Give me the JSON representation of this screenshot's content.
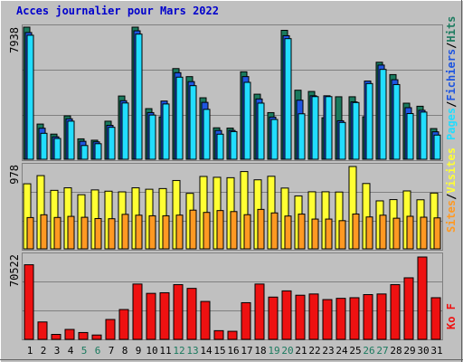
{
  "colors": {
    "background": "#c0c0c0",
    "title": "#0000cc",
    "hits": "#1a7a5e",
    "files": "#1e55e0",
    "pages": "#22ddff",
    "visits": "#ffff33",
    "sites": "#ff9922",
    "kb": "#ee1111",
    "weekend_label": "#1a7a5e",
    "weekday_label": "#000000"
  },
  "chart_data": [
    {
      "type": "bar",
      "title": "Acces journalier pour Mars 2022",
      "panel": "hits-files-pages",
      "ylabel_max": "7938",
      "ylim": [
        0,
        7938
      ],
      "legend": [
        {
          "label": "Pages",
          "color": "#22ddff"
        },
        {
          "label": "Fichiers",
          "color": "#1e55e0"
        },
        {
          "label": "Hits",
          "color": "#1a7a5e"
        }
      ],
      "categories": [
        "1",
        "2",
        "3",
        "4",
        "5",
        "6",
        "7",
        "8",
        "9",
        "10",
        "11",
        "12",
        "13",
        "14",
        "15",
        "16",
        "17",
        "18",
        "19",
        "20",
        "21",
        "22",
        "23",
        "24",
        "25",
        "26",
        "27",
        "28",
        "29",
        "30",
        "31"
      ],
      "weekend_days": [
        "5",
        "6",
        "12",
        "13",
        "19",
        "20",
        "26",
        "27"
      ],
      "series": [
        {
          "name": "Hits",
          "values": [
            7938,
            2116,
            1512,
            2607,
            1227,
            1145,
            2288,
            3801,
            7938,
            3043,
            2548,
            5449,
            4965,
            3695,
            1891,
            1873,
            5256,
            3910,
            2803,
            7747,
            4149,
            4074,
            2496,
            3756,
            3756,
            2554,
            5830,
            5088,
            3370,
            3186,
            1845
          ]
        },
        {
          "name": "Fichiers",
          "values": [
            7615,
            1866,
            1351,
            2433,
            1080,
            1047,
            2040,
            3519,
            7719,
            2804,
            3499,
            5202,
            4665,
            3419,
            1730,
            1735,
            4967,
            3626,
            2537,
            7425,
            3549,
            3815,
            3815,
            2313,
            3448,
            4700,
            5660,
            4780,
            3100,
            2942,
            1650
          ]
        },
        {
          "name": "Pages",
          "values": [
            7453,
            1560,
            1250,
            2292,
            827,
            935,
            1921,
            3382,
            7520,
            2657,
            3323,
            4933,
            4421,
            2999,
            1508,
            1663,
            4623,
            3373,
            2392,
            7248,
            2732,
            3764,
            3764,
            2213,
            3409,
            4549,
            5400,
            4489,
            2746,
            2835,
            1454
          ]
        }
      ]
    },
    {
      "type": "bar",
      "panel": "visits-sites",
      "ylabel_max": "978",
      "ylim": [
        0,
        978
      ],
      "legend": [
        {
          "label": "Sites",
          "color": "#ff9922"
        },
        {
          "label": "Visites",
          "color": "#ffff33"
        }
      ],
      "categories": [
        "1",
        "2",
        "3",
        "4",
        "5",
        "6",
        "7",
        "8",
        "9",
        "10",
        "11",
        "12",
        "13",
        "14",
        "15",
        "16",
        "17",
        "18",
        "19",
        "20",
        "21",
        "22",
        "23",
        "24",
        "25",
        "26",
        "27",
        "28",
        "29",
        "30",
        "31"
      ],
      "series": [
        {
          "name": "Visites",
          "values": [
            773,
            870,
            695,
            725,
            643,
            700,
            685,
            677,
            725,
            708,
            716,
            812,
            659,
            860,
            850,
            845,
            918,
            820,
            862,
            722,
            628,
            678,
            678,
            675,
            978,
            776,
            570,
            585,
            688,
            583,
            663
          ]
        },
        {
          "name": "Sites",
          "values": [
            372,
            405,
            373,
            386,
            375,
            360,
            358,
            410,
            400,
            393,
            393,
            401,
            460,
            433,
            455,
            443,
            406,
            469,
            427,
            390,
            413,
            354,
            354,
            335,
            414,
            379,
            400,
            364,
            387,
            376,
            368
          ]
        }
      ]
    },
    {
      "type": "bar",
      "panel": "kb",
      "ylabel_max": "70522",
      "ylim": [
        0,
        70522
      ],
      "legend": [
        {
          "label": "Ko F",
          "color": "#ee1111"
        }
      ],
      "categories": [
        "1",
        "2",
        "3",
        "4",
        "5",
        "6",
        "7",
        "8",
        "9",
        "10",
        "11",
        "12",
        "13",
        "14",
        "15",
        "16",
        "17",
        "18",
        "19",
        "20",
        "21",
        "22",
        "23",
        "24",
        "25",
        "26",
        "27",
        "28",
        "29",
        "30",
        "31"
      ],
      "series": [
        {
          "name": "Ko F",
          "values": [
            63893,
            14914,
            4258,
            8519,
            5858,
            3727,
            17041,
            25561,
            47394,
            39406,
            39938,
            46862,
            43666,
            32481,
            7455,
            6923,
            31416,
            47394,
            36211,
            41536,
            37807,
            38871,
            34079,
            35144,
            35677,
            38342,
            38871,
            46862,
            52718,
            70522,
            35677
          ]
        }
      ]
    }
  ]
}
